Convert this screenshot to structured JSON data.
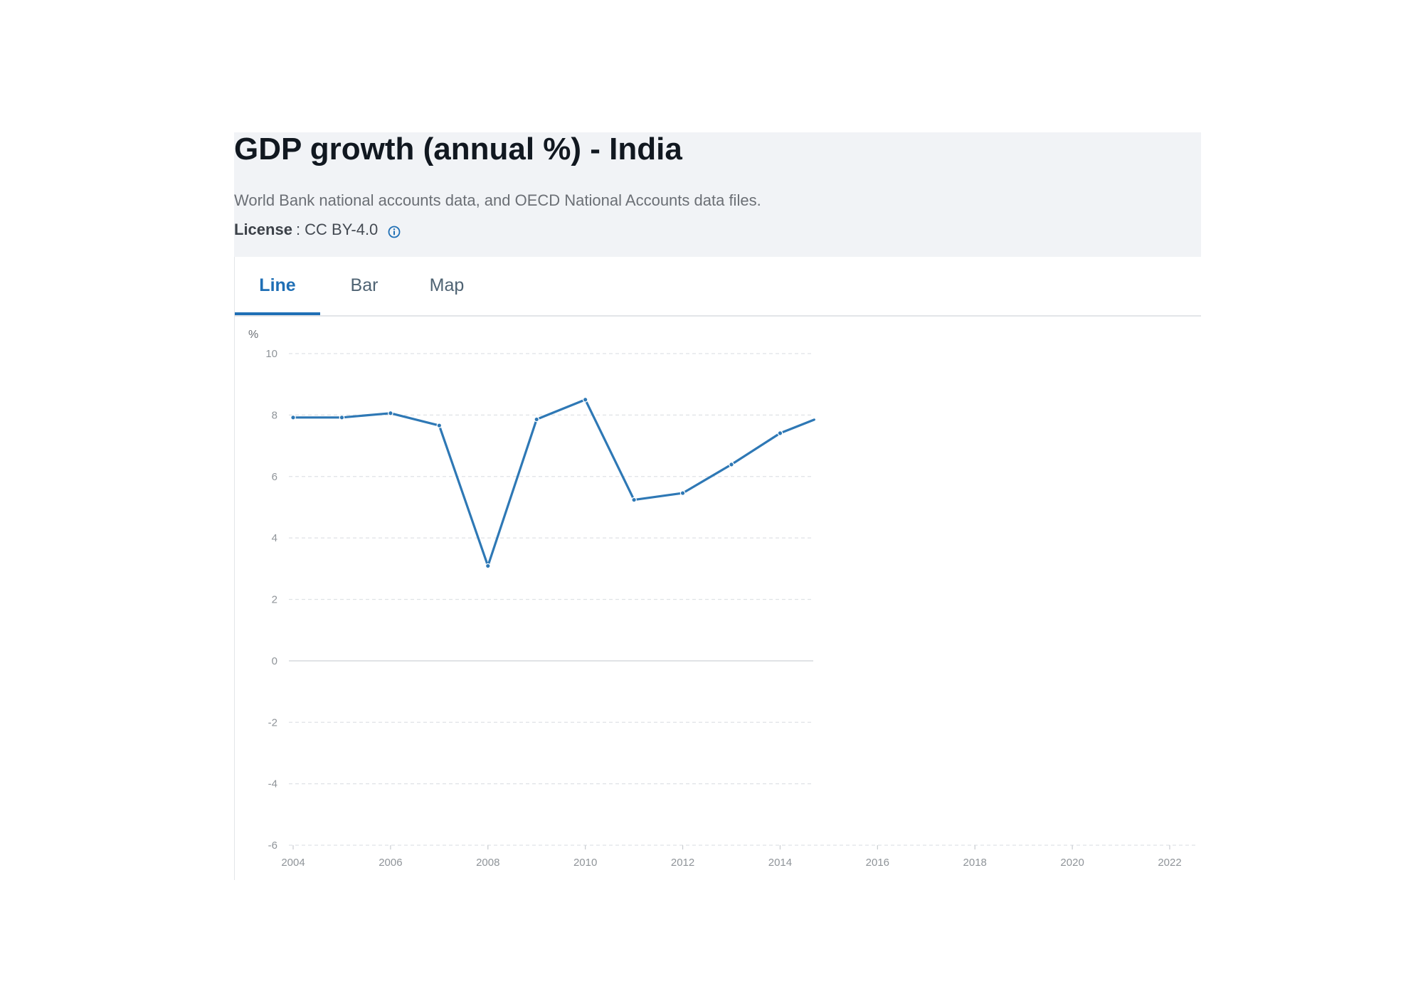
{
  "header": {
    "title": "GDP growth (annual %) - India",
    "source": "World Bank national accounts data, and OECD National Accounts data files.",
    "license_label": "License",
    "license_value": ": CC BY-4.0"
  },
  "tabs": [
    {
      "label": "Line",
      "active": true
    },
    {
      "label": "Bar",
      "active": false
    },
    {
      "label": "Map",
      "active": false
    }
  ],
  "icons": {
    "info": "info-circle-icon"
  },
  "colors": {
    "line": "#2e78b5",
    "accent": "#1f6fb5",
    "header_bg": "#f1f3f6"
  },
  "chart_data": {
    "type": "line",
    "title": "",
    "xlabel": "",
    "ylabel": "%",
    "x_ticks": [
      "2004",
      "2006",
      "2008",
      "2010",
      "2012",
      "2014",
      "2016",
      "2018",
      "2020",
      "2022"
    ],
    "y_ticks": [
      "10",
      "8",
      "6",
      "4",
      "2",
      "0",
      "-2",
      "-4",
      "-6"
    ],
    "xlim": [
      2004,
      2022.5
    ],
    "ylim": [
      -6,
      10
    ],
    "grid": true,
    "series": [
      {
        "name": "",
        "x": [
          2004,
          2005,
          2006,
          2007,
          2008,
          2009,
          2010,
          2011,
          2012,
          2013,
          2014,
          2014.7
        ],
        "values": [
          7.92,
          7.92,
          8.06,
          7.66,
          3.09,
          7.86,
          8.5,
          5.24,
          5.46,
          6.39,
          7.41,
          7.85
        ]
      }
    ]
  }
}
